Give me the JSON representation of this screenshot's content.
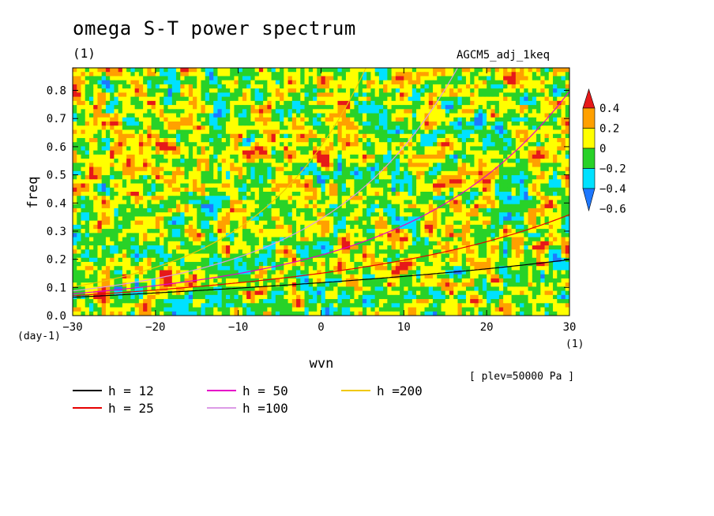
{
  "chart_data": {
    "type": "heatmap",
    "title": "omega S-T power spectrum",
    "unit_label": "(1)",
    "run_label": "AGCM5_adj_1keq",
    "xlabel": "wvn",
    "ylabel": "freq",
    "x_unit": "(1)",
    "y_unit": "(day-1)",
    "xlim": [
      -30,
      30
    ],
    "ylim": [
      0,
      0.88
    ],
    "xticks": [
      -30,
      -20,
      -10,
      0,
      10,
      20,
      30
    ],
    "yticks": [
      0.0,
      0.1,
      0.2,
      0.3,
      0.4,
      0.5,
      0.6,
      0.7,
      0.8
    ],
    "annotation": "[ plev=50000 Pa ]",
    "colorbar": {
      "ticks": [
        "0.4",
        "0.2",
        "0",
        "−0.2",
        "−0.4",
        "−0.6"
      ],
      "levels": [
        -0.6,
        -0.4,
        -0.2,
        0,
        0.2,
        0.4
      ],
      "colors": [
        "#1e78ff",
        "#00e1ff",
        "#28d228",
        "#ffff00",
        "#ffa000",
        "#e61919"
      ]
    },
    "field_description_levels": "noisy field, mostly yellow (0 to 0.2) and green (-0.2 to 0), with scattered orange (0.2 to 0.4) and cyan (-0.4 to -0.2) patches",
    "series": [
      {
        "name": "h = 12",
        "h": 12,
        "color": "#000000"
      },
      {
        "name": "h = 25",
        "h": 25,
        "color": "#e60000"
      },
      {
        "name": "h = 50",
        "h": 50,
        "color": "#e600c8"
      },
      {
        "name": "h =100",
        "h": 100,
        "color": "#dc9be6"
      },
      {
        "name": "h =200",
        "h": 200,
        "color": "#f0c800"
      }
    ]
  }
}
